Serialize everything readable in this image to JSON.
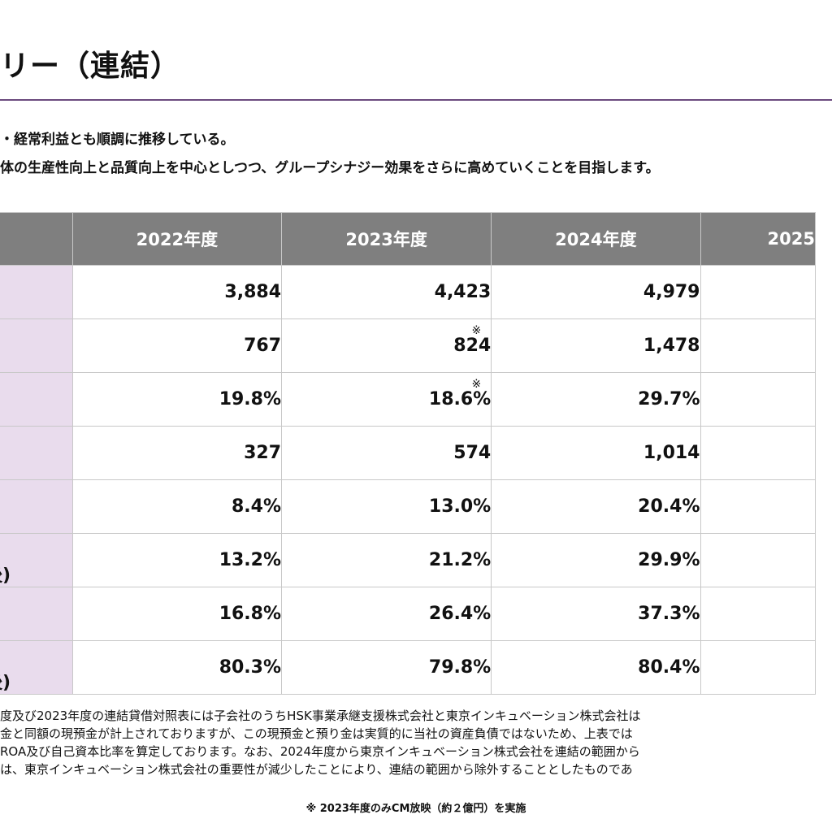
{
  "page": {
    "title": "リー（連結）",
    "summary": [
      "・経常利益とも順調に推移している。",
      "体の生産性向上と品質向上を中心としつつ、グループシナジー効果をさらに高めていくことを目指します。"
    ]
  },
  "table": {
    "columns": [
      "2022年度",
      "2023年度",
      "2024年度",
      "2025"
    ],
    "rows": [
      {
        "label": "",
        "values": [
          "3,884",
          "4,423",
          "4,979",
          ""
        ],
        "marks": [
          "",
          "",
          "",
          ""
        ]
      },
      {
        "label": "",
        "values": [
          "767",
          "824",
          "1,478",
          ""
        ],
        "marks": [
          "",
          "※",
          "",
          ""
        ]
      },
      {
        "label": "",
        "values": [
          "19.8%",
          "18.6%",
          "29.7%",
          ""
        ],
        "marks": [
          "",
          "※",
          "",
          ""
        ]
      },
      {
        "label": "",
        "values": [
          "327",
          "574",
          "1,014",
          ""
        ],
        "marks": [
          "",
          "",
          "",
          ""
        ]
      },
      {
        "label": "",
        "values": [
          "8.4%",
          "13.0%",
          "20.4%",
          ""
        ],
        "marks": [
          "",
          "",
          "",
          ""
        ]
      },
      {
        "label": "後)",
        "values": [
          "13.2%",
          "21.2%",
          "29.9%",
          ""
        ],
        "marks": [
          "",
          "",
          "",
          ""
        ]
      },
      {
        "label": "",
        "values": [
          "16.8%",
          "26.4%",
          "37.3%",
          ""
        ],
        "marks": [
          "",
          "",
          "",
          ""
        ]
      },
      {
        "label": "後)",
        "values": [
          "80.3%",
          "79.8%",
          "80.4%",
          ""
        ],
        "marks": [
          "",
          "",
          "",
          ""
        ]
      }
    ]
  },
  "notes": [
    "度及び2023年度の連結貸借対照表には子会社のうちHSK事業承継支援株式会社と東京インキュベーション株式会社は",
    "金と同額の現預金が計上されておりますが、この現預金と預り金は実質的に当社の資産負債ではないため、上表では",
    "ROA及び自己資本比率を算定しております。なお、2024年度から東京インキュベーション株式会社を連結の範囲から",
    "は、東京インキュベーション株式会社の重要性が減少したことにより、連結の範囲から除外することとしたものであ"
  ],
  "cm_note": "※ 2023年度のみCM放映（約２億円）を実施"
}
